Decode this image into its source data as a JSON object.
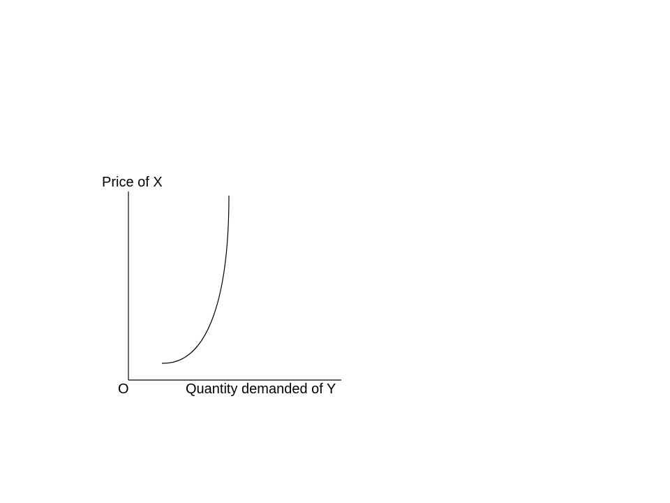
{
  "diagram": {
    "y_axis_label": "Price of X",
    "x_axis_label": "Quantity demanded of Y",
    "origin_label": "O",
    "curve": {
      "description_shape": "upward-sloping convex",
      "color": "#000000"
    },
    "axis_color": "#000000",
    "background": "#ffffff"
  }
}
